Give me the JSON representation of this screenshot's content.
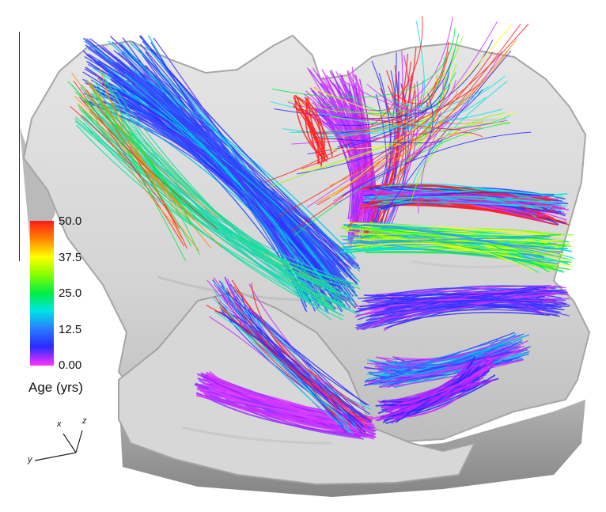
{
  "legend": {
    "title": "Age (yrs)",
    "ticks": [
      "50.0",
      "37.5",
      "25.0",
      "12.5",
      "0.00"
    ],
    "range": [
      0,
      50
    ],
    "colors": [
      "#ff1a1a",
      "#ffff00",
      "#00ee44",
      "#00e5e5",
      "#2a2aff",
      "#ff33ff"
    ]
  },
  "axes": {
    "x": "x",
    "y": "y",
    "z": "z"
  },
  "colors": {
    "surface": "#d9d9d9",
    "surface_edge": "#8a8a8a",
    "background": "#ffffff"
  }
}
